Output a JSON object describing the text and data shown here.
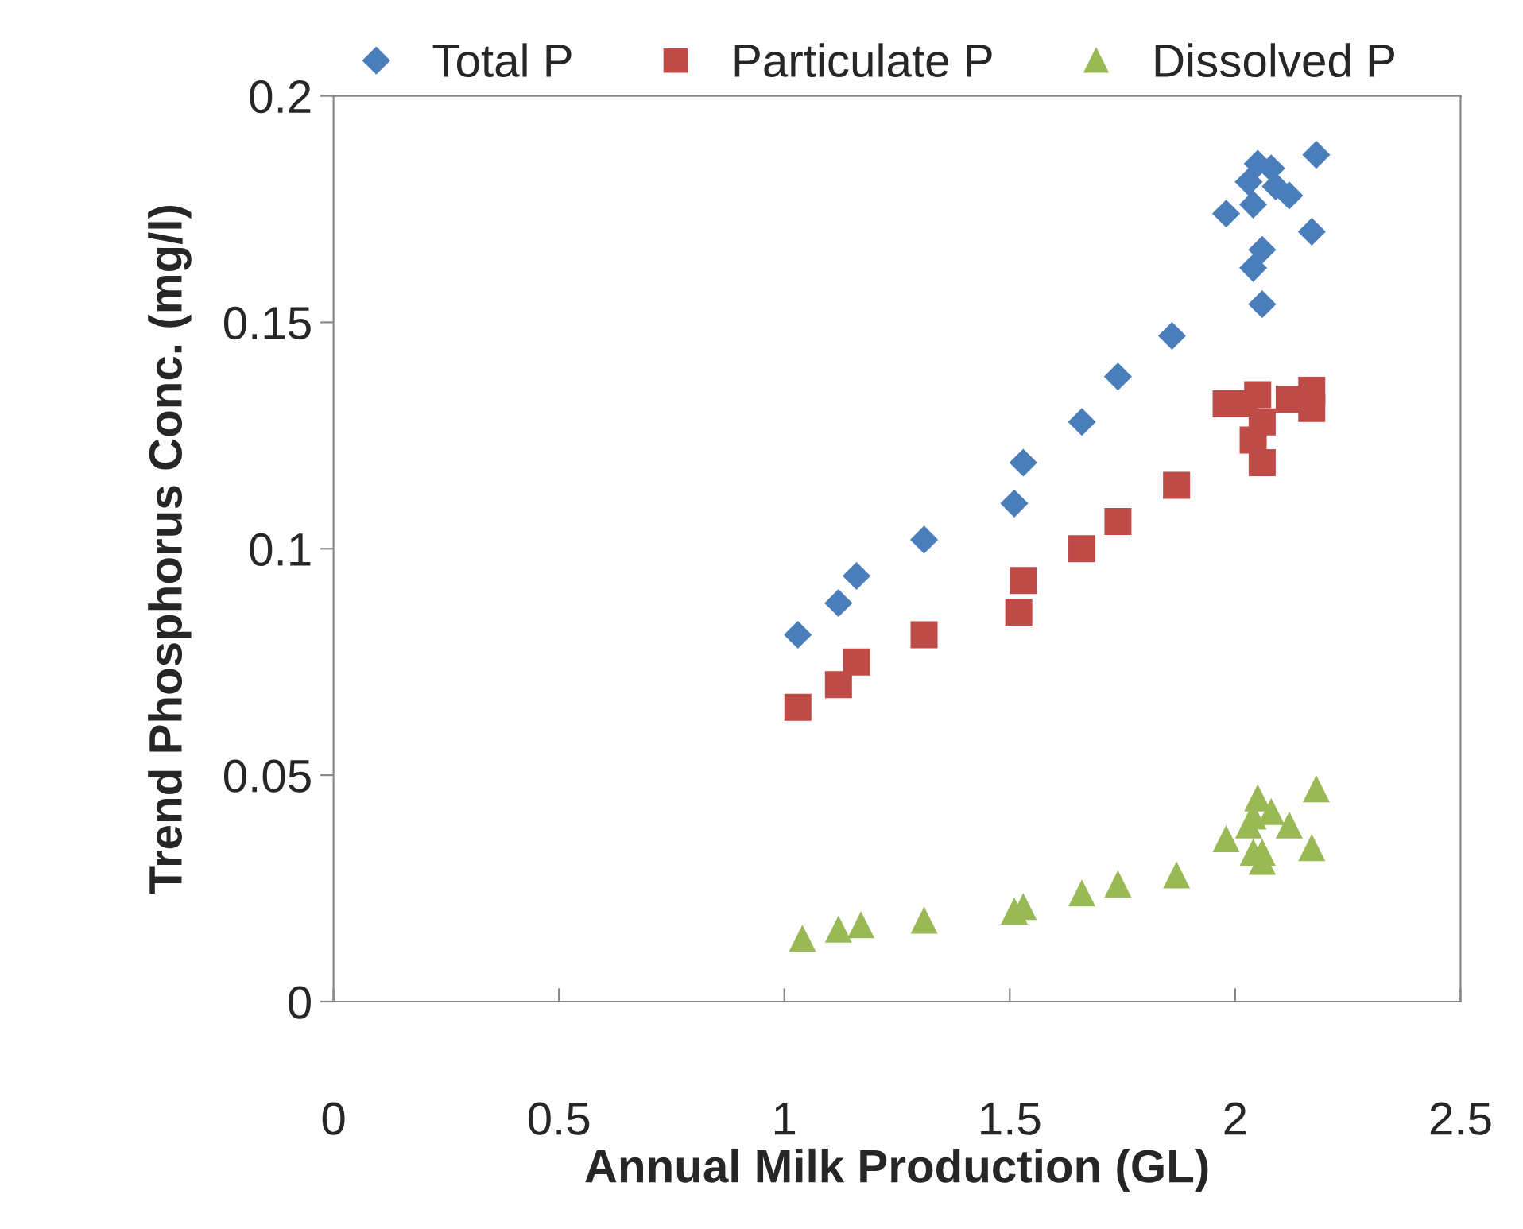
{
  "chart_data": {
    "type": "scatter",
    "xlabel": "Annual Milk Production (GL)",
    "ylabel": "Trend Phosphorus Conc. (mg/l)",
    "xlim": [
      0,
      2.5
    ],
    "xticks": [
      0,
      0.5,
      1,
      1.5,
      2,
      2.5
    ],
    "ylim": [
      0,
      0.2
    ],
    "yticks": [
      0,
      0.05,
      0.1,
      0.15,
      0.2
    ],
    "grid": false,
    "legend": "top",
    "series": [
      {
        "name": "Total P",
        "color": "#4a7ebb",
        "marker": "diamond",
        "x": [
          1.03,
          1.12,
          1.16,
          1.31,
          1.51,
          1.53,
          1.66,
          1.74,
          1.86,
          1.98,
          2.04,
          2.03,
          2.05,
          2.08,
          2.09,
          2.12,
          2.17,
          2.18,
          2.04,
          2.06,
          2.06
        ],
        "values": [
          0.081,
          0.088,
          0.094,
          0.102,
          0.11,
          0.119,
          0.128,
          0.138,
          0.147,
          0.174,
          0.176,
          0.181,
          0.185,
          0.184,
          0.18,
          0.178,
          0.17,
          0.187,
          0.162,
          0.166,
          0.154
        ]
      },
      {
        "name": "Particulate P",
        "color": "#be4b48",
        "marker": "square",
        "x": [
          1.03,
          1.12,
          1.16,
          1.31,
          1.52,
          1.53,
          1.66,
          1.74,
          1.87,
          1.98,
          2.02,
          2.05,
          2.09,
          2.12,
          2.17,
          2.17,
          2.04,
          2.06,
          2.06
        ],
        "values": [
          0.065,
          0.07,
          0.075,
          0.081,
          0.086,
          0.093,
          0.1,
          0.106,
          0.114,
          0.132,
          0.132,
          0.134,
          null,
          0.133,
          0.135,
          0.131,
          0.124,
          0.128,
          0.119
        ]
      },
      {
        "name": "Dissolved P",
        "color": "#98b954",
        "marker": "triangle",
        "x": [
          1.04,
          1.12,
          1.17,
          1.31,
          1.51,
          1.53,
          1.66,
          1.74,
          1.87,
          1.98,
          2.03,
          2.05,
          2.08,
          2.12,
          2.18,
          2.17,
          2.04,
          2.06,
          2.06,
          2.04
        ],
        "values": [
          0.014,
          0.016,
          0.017,
          0.018,
          0.02,
          0.021,
          0.024,
          0.026,
          0.028,
          0.036,
          0.039,
          0.045,
          0.042,
          0.039,
          0.047,
          0.034,
          0.033,
          0.033,
          0.031,
          0.041
        ]
      }
    ]
  }
}
